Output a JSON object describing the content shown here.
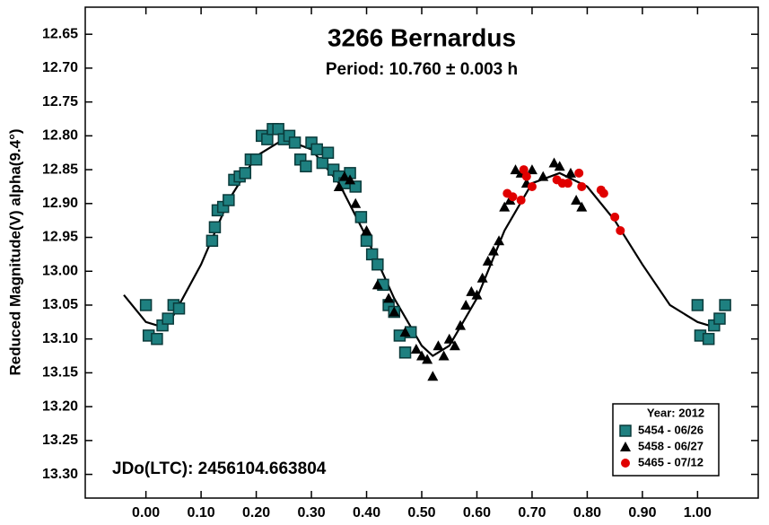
{
  "chart_data": {
    "type": "scatter",
    "title": "3266 Bernardus",
    "subtitle": "Period: 10.760 ± 0.003 h",
    "y_label": "Reduced Magnitude(V) alpha(9.4°)",
    "annotation": "JDo(LTC): 2456104.663804",
    "legend_title": "Year: 2012",
    "legend_position": "lower right",
    "y_inverted": true,
    "xlim": [
      -0.11,
      1.11
    ],
    "ylim": [
      12.61,
      13.335
    ],
    "xticks": [
      {
        "value": 0,
        "label": "0.00"
      },
      {
        "value": 0.1,
        "label": "0.10"
      },
      {
        "value": 0.2,
        "label": "0.20"
      },
      {
        "value": 0.3,
        "label": "0.30"
      },
      {
        "value": 0.4,
        "label": "0.40"
      },
      {
        "value": 0.5,
        "label": "0.50"
      },
      {
        "value": 0.6,
        "label": "0.60"
      },
      {
        "value": 0.7,
        "label": "0.70"
      },
      {
        "value": 0.8,
        "label": "0.80"
      },
      {
        "value": 0.9,
        "label": "0.90"
      },
      {
        "value": 1,
        "label": "1.00"
      }
    ],
    "yticks": [
      {
        "value": 12.65,
        "label": "12.65"
      },
      {
        "value": 12.7,
        "label": "12.70"
      },
      {
        "value": 12.75,
        "label": "12.75"
      },
      {
        "value": 12.8,
        "label": "12.80"
      },
      {
        "value": 12.85,
        "label": "12.85"
      },
      {
        "value": 12.9,
        "label": "12.90"
      },
      {
        "value": 12.95,
        "label": "12.95"
      },
      {
        "value": 13,
        "label": "13.00"
      },
      {
        "value": 13.05,
        "label": "13.05"
      },
      {
        "value": 13.1,
        "label": "13.10"
      },
      {
        "value": 13.15,
        "label": "13.15"
      },
      {
        "value": 13.2,
        "label": "13.20"
      },
      {
        "value": 13.25,
        "label": "13.25"
      },
      {
        "value": 13.3,
        "label": "13.30"
      }
    ],
    "series": [
      {
        "name": "5454 - 06/26",
        "color": "#1e8080",
        "marker": "square",
        "x": [
          0,
          0.005,
          0.02,
          0.03,
          0.04,
          0.05,
          0.06,
          0.12,
          0.125,
          0.13,
          0.14,
          0.15,
          0.16,
          0.17,
          0.18,
          0.19,
          0.2,
          0.21,
          0.22,
          0.23,
          0.24,
          0.25,
          0.26,
          0.27,
          0.28,
          0.29,
          0.3,
          0.31,
          0.32,
          0.33,
          0.34,
          0.35,
          0.36,
          0.37,
          0.38,
          0.39,
          0.4,
          0.41,
          0.42,
          0.43,
          0.44,
          0.45,
          0.46,
          0.47,
          0.48,
          1,
          1.005,
          1.02,
          1.03,
          1.04,
          1.05
        ],
        "values": [
          13.05,
          13.095,
          13.1,
          13.08,
          13.07,
          13.05,
          13.055,
          12.955,
          12.935,
          12.91,
          12.905,
          12.895,
          12.865,
          12.86,
          12.855,
          12.835,
          12.835,
          12.8,
          12.805,
          12.79,
          12.79,
          12.805,
          12.8,
          12.81,
          12.835,
          12.845,
          12.81,
          12.82,
          12.84,
          12.825,
          12.85,
          12.86,
          12.87,
          12.855,
          12.875,
          12.92,
          12.955,
          12.975,
          12.99,
          13.02,
          13.05,
          13.06,
          13.095,
          13.12,
          13.09,
          13.05,
          13.095,
          13.1,
          13.08,
          13.07,
          13.05
        ]
      },
      {
        "name": "5458 - 06/27",
        "color": "#000000",
        "marker": "triangle",
        "x": [
          0.35,
          0.36,
          0.37,
          0.38,
          0.4,
          0.42,
          0.44,
          0.45,
          0.47,
          0.49,
          0.5,
          0.51,
          0.52,
          0.53,
          0.54,
          0.55,
          0.56,
          0.57,
          0.58,
          0.59,
          0.6,
          0.61,
          0.62,
          0.63,
          0.64,
          0.65,
          0.66,
          0.67,
          0.68,
          0.69,
          0.7,
          0.72,
          0.74,
          0.75,
          0.77,
          0.78,
          0.79
        ],
        "values": [
          12.875,
          12.86,
          12.865,
          12.9,
          12.94,
          13.02,
          13.04,
          13.06,
          13.09,
          13.115,
          13.125,
          13.13,
          13.155,
          13.11,
          13.125,
          13.1,
          13.11,
          13.08,
          13.05,
          13.03,
          13.035,
          13.01,
          12.985,
          12.97,
          12.955,
          12.905,
          12.895,
          12.85,
          12.855,
          12.87,
          12.85,
          12.86,
          12.84,
          12.845,
          12.855,
          12.895,
          12.905
        ]
      },
      {
        "name": "5465 - 07/12",
        "color": "#e00000",
        "marker": "circle",
        "x": [
          0.655,
          0.665,
          0.68,
          0.685,
          0.69,
          0.7,
          0.745,
          0.755,
          0.765,
          0.785,
          0.79,
          0.825,
          0.83,
          0.85,
          0.86
        ],
        "values": [
          12.885,
          12.89,
          12.895,
          12.85,
          12.86,
          12.875,
          12.865,
          12.87,
          12.87,
          12.855,
          12.875,
          12.88,
          12.885,
          12.92,
          12.94
        ]
      }
    ],
    "fit": {
      "color": "#000000",
      "x": [
        -0.04,
        0,
        0.02,
        0.05,
        0.1,
        0.15,
        0.2,
        0.25,
        0.3,
        0.35,
        0.4,
        0.45,
        0.5,
        0.52,
        0.55,
        0.6,
        0.65,
        0.7,
        0.75,
        0.8,
        0.85,
        0.9,
        0.95,
        1,
        1.02,
        1.05
      ],
      "values": [
        13.035,
        13.075,
        13.08,
        13.065,
        12.99,
        12.895,
        12.83,
        12.805,
        12.82,
        12.87,
        12.95,
        13.04,
        13.11,
        13.125,
        13.11,
        13.04,
        12.94,
        12.87,
        12.855,
        12.875,
        12.925,
        12.99,
        13.05,
        13.075,
        13.08,
        13.065
      ]
    }
  }
}
